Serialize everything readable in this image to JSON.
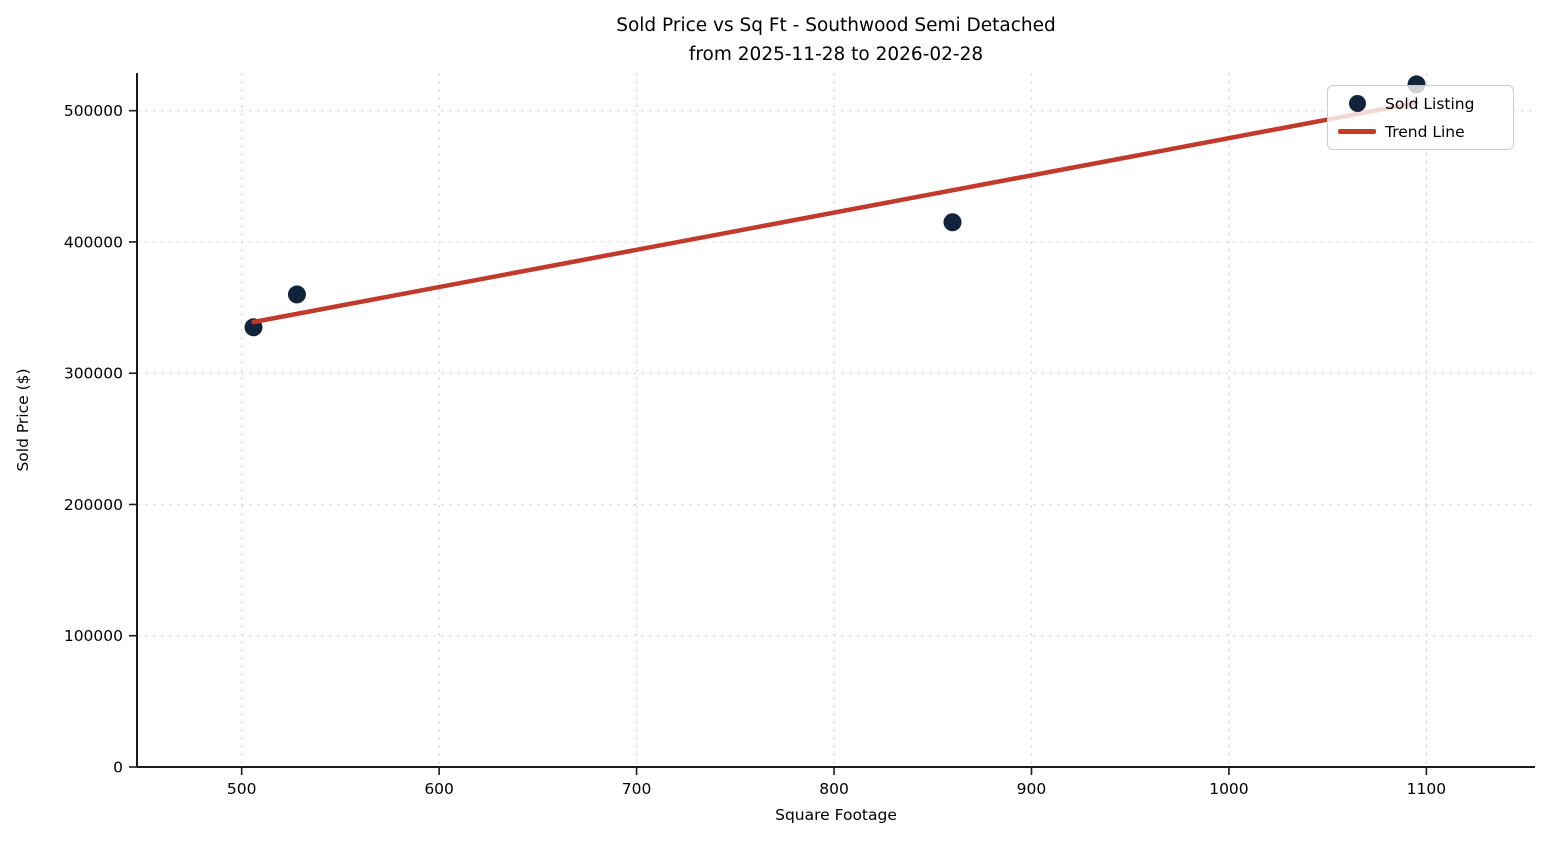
{
  "chart_data": {
    "type": "scatter",
    "title": "Sold Price vs Sq Ft - Southwood Semi Detached",
    "subtitle": "from 2025-11-28 to 2026-02-28",
    "xlabel": "Square Footage",
    "ylabel": "Sold Price ($)",
    "xlim": [
      447,
      1155
    ],
    "ylim": [
      0,
      528700
    ],
    "xticks": [
      500,
      600,
      700,
      800,
      900,
      1000,
      1100
    ],
    "yticks": [
      0,
      100000,
      200000,
      300000,
      400000,
      500000
    ],
    "grid": true,
    "legend_position": "upper right",
    "series": [
      {
        "name": "Sold Listing",
        "kind": "scatter",
        "color": "#12243c",
        "points": [
          [
            506,
            335000
          ],
          [
            528,
            360000
          ],
          [
            860,
            415000
          ],
          [
            1095,
            520000
          ]
        ]
      },
      {
        "name": "Trend Line",
        "kind": "line",
        "color": "#c13a2c",
        "points": [
          [
            506,
            339000
          ],
          [
            1095,
            506000
          ]
        ]
      }
    ],
    "style": {
      "grid_color": "#dcdcdc",
      "spine_color": "#1a1a1a",
      "text_color": "#000000",
      "marker_radius": 9,
      "trend_width": 4.5
    }
  }
}
